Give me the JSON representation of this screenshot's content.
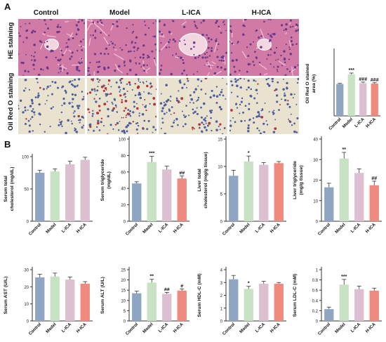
{
  "figure": {
    "panel_a_label": "A",
    "panel_b_label": "B",
    "columns": [
      "Control",
      "Model",
      "L-ICA",
      "H-ICA"
    ],
    "rows": [
      "HE staining",
      "Oil Red O staining"
    ]
  },
  "chart_data": [
    {
      "type": "bar",
      "ylabel": "Oil Red O stained area (%)",
      "categories": [
        "Control",
        "Model",
        "L-ICA",
        "H-ICA"
      ],
      "values": [
        148,
        193,
        152,
        150
      ],
      "errors": [
        3,
        6,
        5,
        4
      ],
      "ylim": [
        0,
        300
      ],
      "ticks": [],
      "marks": [
        "",
        "***",
        "###",
        "###"
      ],
      "colors": [
        "#8ea6c2",
        "#c8e2c4",
        "#dcbfd0",
        "#ee8b7e"
      ]
    },
    {
      "type": "bar",
      "ylabel": "Serum total cholesterol (mg/dL)",
      "categories": [
        "Control",
        "Model",
        "L-ICA",
        "H-ICA"
      ],
      "values": [
        75,
        77,
        88,
        95
      ],
      "errors": [
        4,
        4,
        5,
        4
      ],
      "ylim": [
        0,
        100
      ],
      "ticks": [
        0,
        50,
        100
      ],
      "marks": [
        "",
        "",
        "",
        ""
      ],
      "colors": [
        "#8ea6c2",
        "#c8e2c4",
        "#dcbfd0",
        "#dcbfd0"
      ]
    },
    {
      "type": "bar",
      "ylabel": "Serum triglyceride (mg/dL)",
      "categories": [
        "Control",
        "Model",
        "L-ICA",
        "H-ICA"
      ],
      "values": [
        46,
        72,
        63,
        52
      ],
      "errors": [
        2,
        7,
        4,
        3
      ],
      "ylim": [
        0,
        100
      ],
      "ticks": [
        0,
        20,
        40,
        60,
        80,
        100
      ],
      "marks": [
        "",
        "***",
        "",
        "##"
      ],
      "colors": [
        "#8ea6c2",
        "#c8e2c4",
        "#dcbfd0",
        "#ee8b7e"
      ]
    },
    {
      "type": "bar",
      "ylabel": "Liver total cholesterol (mg/g tissue)",
      "categories": [
        "Control",
        "Model",
        "L-ICA",
        "H-ICA"
      ],
      "values": [
        8.3,
        10.9,
        10.3,
        10.6
      ],
      "errors": [
        1.0,
        1.0,
        0.4,
        0.3
      ],
      "ylim": [
        0,
        15
      ],
      "ticks": [
        0,
        5,
        10,
        15
      ],
      "marks": [
        "",
        "*",
        "",
        ""
      ],
      "colors": [
        "#8ea6c2",
        "#c8e2c4",
        "#dcbfd0",
        "#ee8b7e"
      ]
    },
    {
      "type": "bar",
      "ylabel": "Liver triglyceride (mg/g tissue)",
      "categories": [
        "Control",
        "Model",
        "L-ICA",
        "H-ICA"
      ],
      "values": [
        16.5,
        30.5,
        23.5,
        17.5
      ],
      "errors": [
        2,
        3,
        2,
        2
      ],
      "ylim": [
        0,
        40
      ],
      "ticks": [
        0,
        10,
        20,
        30,
        40
      ],
      "marks": [
        "",
        "**",
        "",
        "##"
      ],
      "colors": [
        "#8ea6c2",
        "#c8e2c4",
        "#dcbfd0",
        "#ee8b7e"
      ]
    },
    {
      "type": "bar",
      "ylabel": "Serum AST (U/L)",
      "categories": [
        "Control",
        "Model",
        "L-ICA",
        "H-ICA"
      ],
      "values": [
        25.5,
        26,
        24.2,
        21.8
      ],
      "errors": [
        1.8,
        2,
        1.5,
        1.2
      ],
      "ylim": [
        0,
        30
      ],
      "ticks": [
        0,
        10,
        20,
        30
      ],
      "marks": [
        "",
        "",
        "",
        ""
      ],
      "colors": [
        "#8ea6c2",
        "#c8e2c4",
        "#dcbfd0",
        "#ee8b7e"
      ]
    },
    {
      "type": "bar",
      "ylabel": "Serum ALT (U/L)",
      "categories": [
        "Control",
        "Model",
        "L-ICA",
        "H-ICA"
      ],
      "values": [
        13.5,
        18.7,
        13.2,
        14.8
      ],
      "errors": [
        1,
        1.6,
        0.7,
        0.8
      ],
      "ylim": [
        0,
        25
      ],
      "ticks": [
        0,
        5,
        10,
        15,
        20,
        25
      ],
      "marks": [
        "",
        "**",
        "##",
        "#"
      ],
      "colors": [
        "#8ea6c2",
        "#c8e2c4",
        "#dcbfd0",
        "#ee8b7e"
      ]
    },
    {
      "type": "bar",
      "ylabel": "Serum HDL-C (mM)",
      "categories": [
        "Control",
        "Model",
        "L-ICA",
        "H-ICA"
      ],
      "values": [
        3.25,
        2.5,
        2.9,
        2.9
      ],
      "errors": [
        0.3,
        0.2,
        0.2,
        0.1
      ],
      "ylim": [
        0,
        4
      ],
      "ticks": [
        0,
        1,
        2,
        3,
        4
      ],
      "marks": [
        "",
        "*",
        "",
        ""
      ],
      "colors": [
        "#8ea6c2",
        "#c8e2c4",
        "#dcbfd0",
        "#ee8b7e"
      ]
    },
    {
      "type": "bar",
      "ylabel": "Serum LDL-C (mM)",
      "categories": [
        "Control",
        "Model",
        "L-ICA",
        "H-ICA"
      ],
      "values": [
        0.23,
        0.71,
        0.62,
        0.59
      ],
      "errors": [
        0.04,
        0.1,
        0.06,
        0.05
      ],
      "ylim": [
        0,
        1
      ],
      "ticks": [
        0,
        0.2,
        0.4,
        0.6,
        0.8,
        1.0
      ],
      "marks": [
        "",
        "***",
        "",
        ""
      ],
      "colors": [
        "#8ea6c2",
        "#c8e2c4",
        "#dcbfd0",
        "#ee8b7e"
      ]
    }
  ],
  "palette": {
    "he_bg": "#d27aa6",
    "he_nuc": "#6a3a8a",
    "oil_bg": "#e9e2cf",
    "oil_nuc": "#4e5fa0",
    "oil_red": "#b2353a",
    "vessel": "#f2d6e0"
  }
}
